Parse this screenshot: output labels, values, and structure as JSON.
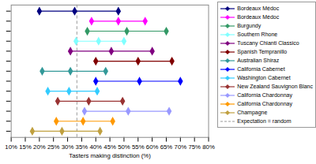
{
  "chart_data": {
    "type": "range",
    "xlabel": "Tasters making distinction (%)",
    "xlim": [
      10,
      80
    ],
    "xticks": [
      {
        "value": 10,
        "label": "10%"
      },
      {
        "value": 15,
        "label": "15%"
      },
      {
        "value": 20,
        "label": "20%"
      },
      {
        "value": 25,
        "label": "25%"
      },
      {
        "value": 30,
        "label": "30%"
      },
      {
        "value": 35,
        "label": "35%"
      },
      {
        "value": 40,
        "label": "40%"
      },
      {
        "value": 45,
        "label": "45%"
      },
      {
        "value": 50,
        "label": "50%"
      },
      {
        "value": 55,
        "label": "55%"
      },
      {
        "value": 60,
        "label": "60%"
      },
      {
        "value": 65,
        "label": "65%"
      },
      {
        "value": 70,
        "label": "70%"
      },
      {
        "value": 75,
        "label": "75%"
      },
      {
        "value": 80,
        "label": "80%"
      }
    ],
    "tick_labels": "x",
    "legend": "right",
    "marker": "diamond",
    "series": [
      {
        "name": "Bordeaux Médoc",
        "color": "#000080",
        "values": [
          20,
          32.5,
          48
        ]
      },
      {
        "name": "Bordeaux Médoc",
        "color": "#ff00ff",
        "values": [
          38.5,
          48,
          57.5
        ]
      },
      {
        "name": "Burgundy",
        "color": "#339966",
        "values": [
          37,
          51,
          65
        ]
      },
      {
        "name": "Southern Rhone",
        "color": "#80ffff",
        "values": [
          33,
          41,
          50
        ]
      },
      {
        "name": "Tuscany Chianti Classico",
        "color": "#800080",
        "values": [
          31,
          45.5,
          60
        ]
      },
      {
        "name": "Spanish Tempranillo",
        "color": "#800000",
        "values": [
          40,
          55,
          67
        ]
      },
      {
        "name": "Australian Shiraz",
        "color": "#339999",
        "values": [
          21,
          31,
          43.5
        ]
      },
      {
        "name": "California Cabernet",
        "color": "#0000ff",
        "values": [
          40,
          55.5,
          70
        ]
      },
      {
        "name": "Washington Cabernet",
        "color": "#33ccff",
        "values": [
          23,
          30.5,
          40.5
        ]
      },
      {
        "name": "New Zealand Sauvignon Blanc",
        "color": "#993333",
        "values": [
          26.5,
          37.5,
          49.5
        ]
      },
      {
        "name": "California Chardonnay",
        "color": "#9999ff",
        "values": [
          36,
          51.5,
          66
        ]
      },
      {
        "name": "California Chardonnay",
        "color": "#ff9900",
        "values": [
          26,
          35.5,
          46
        ]
      },
      {
        "name": "Champagne",
        "color": "#c0a040",
        "values": [
          17.5,
          28,
          41.5
        ]
      }
    ],
    "reference": {
      "name": "Expectation = random",
      "value": 33.3,
      "color": "#999999",
      "line_style": "dashed"
    }
  }
}
